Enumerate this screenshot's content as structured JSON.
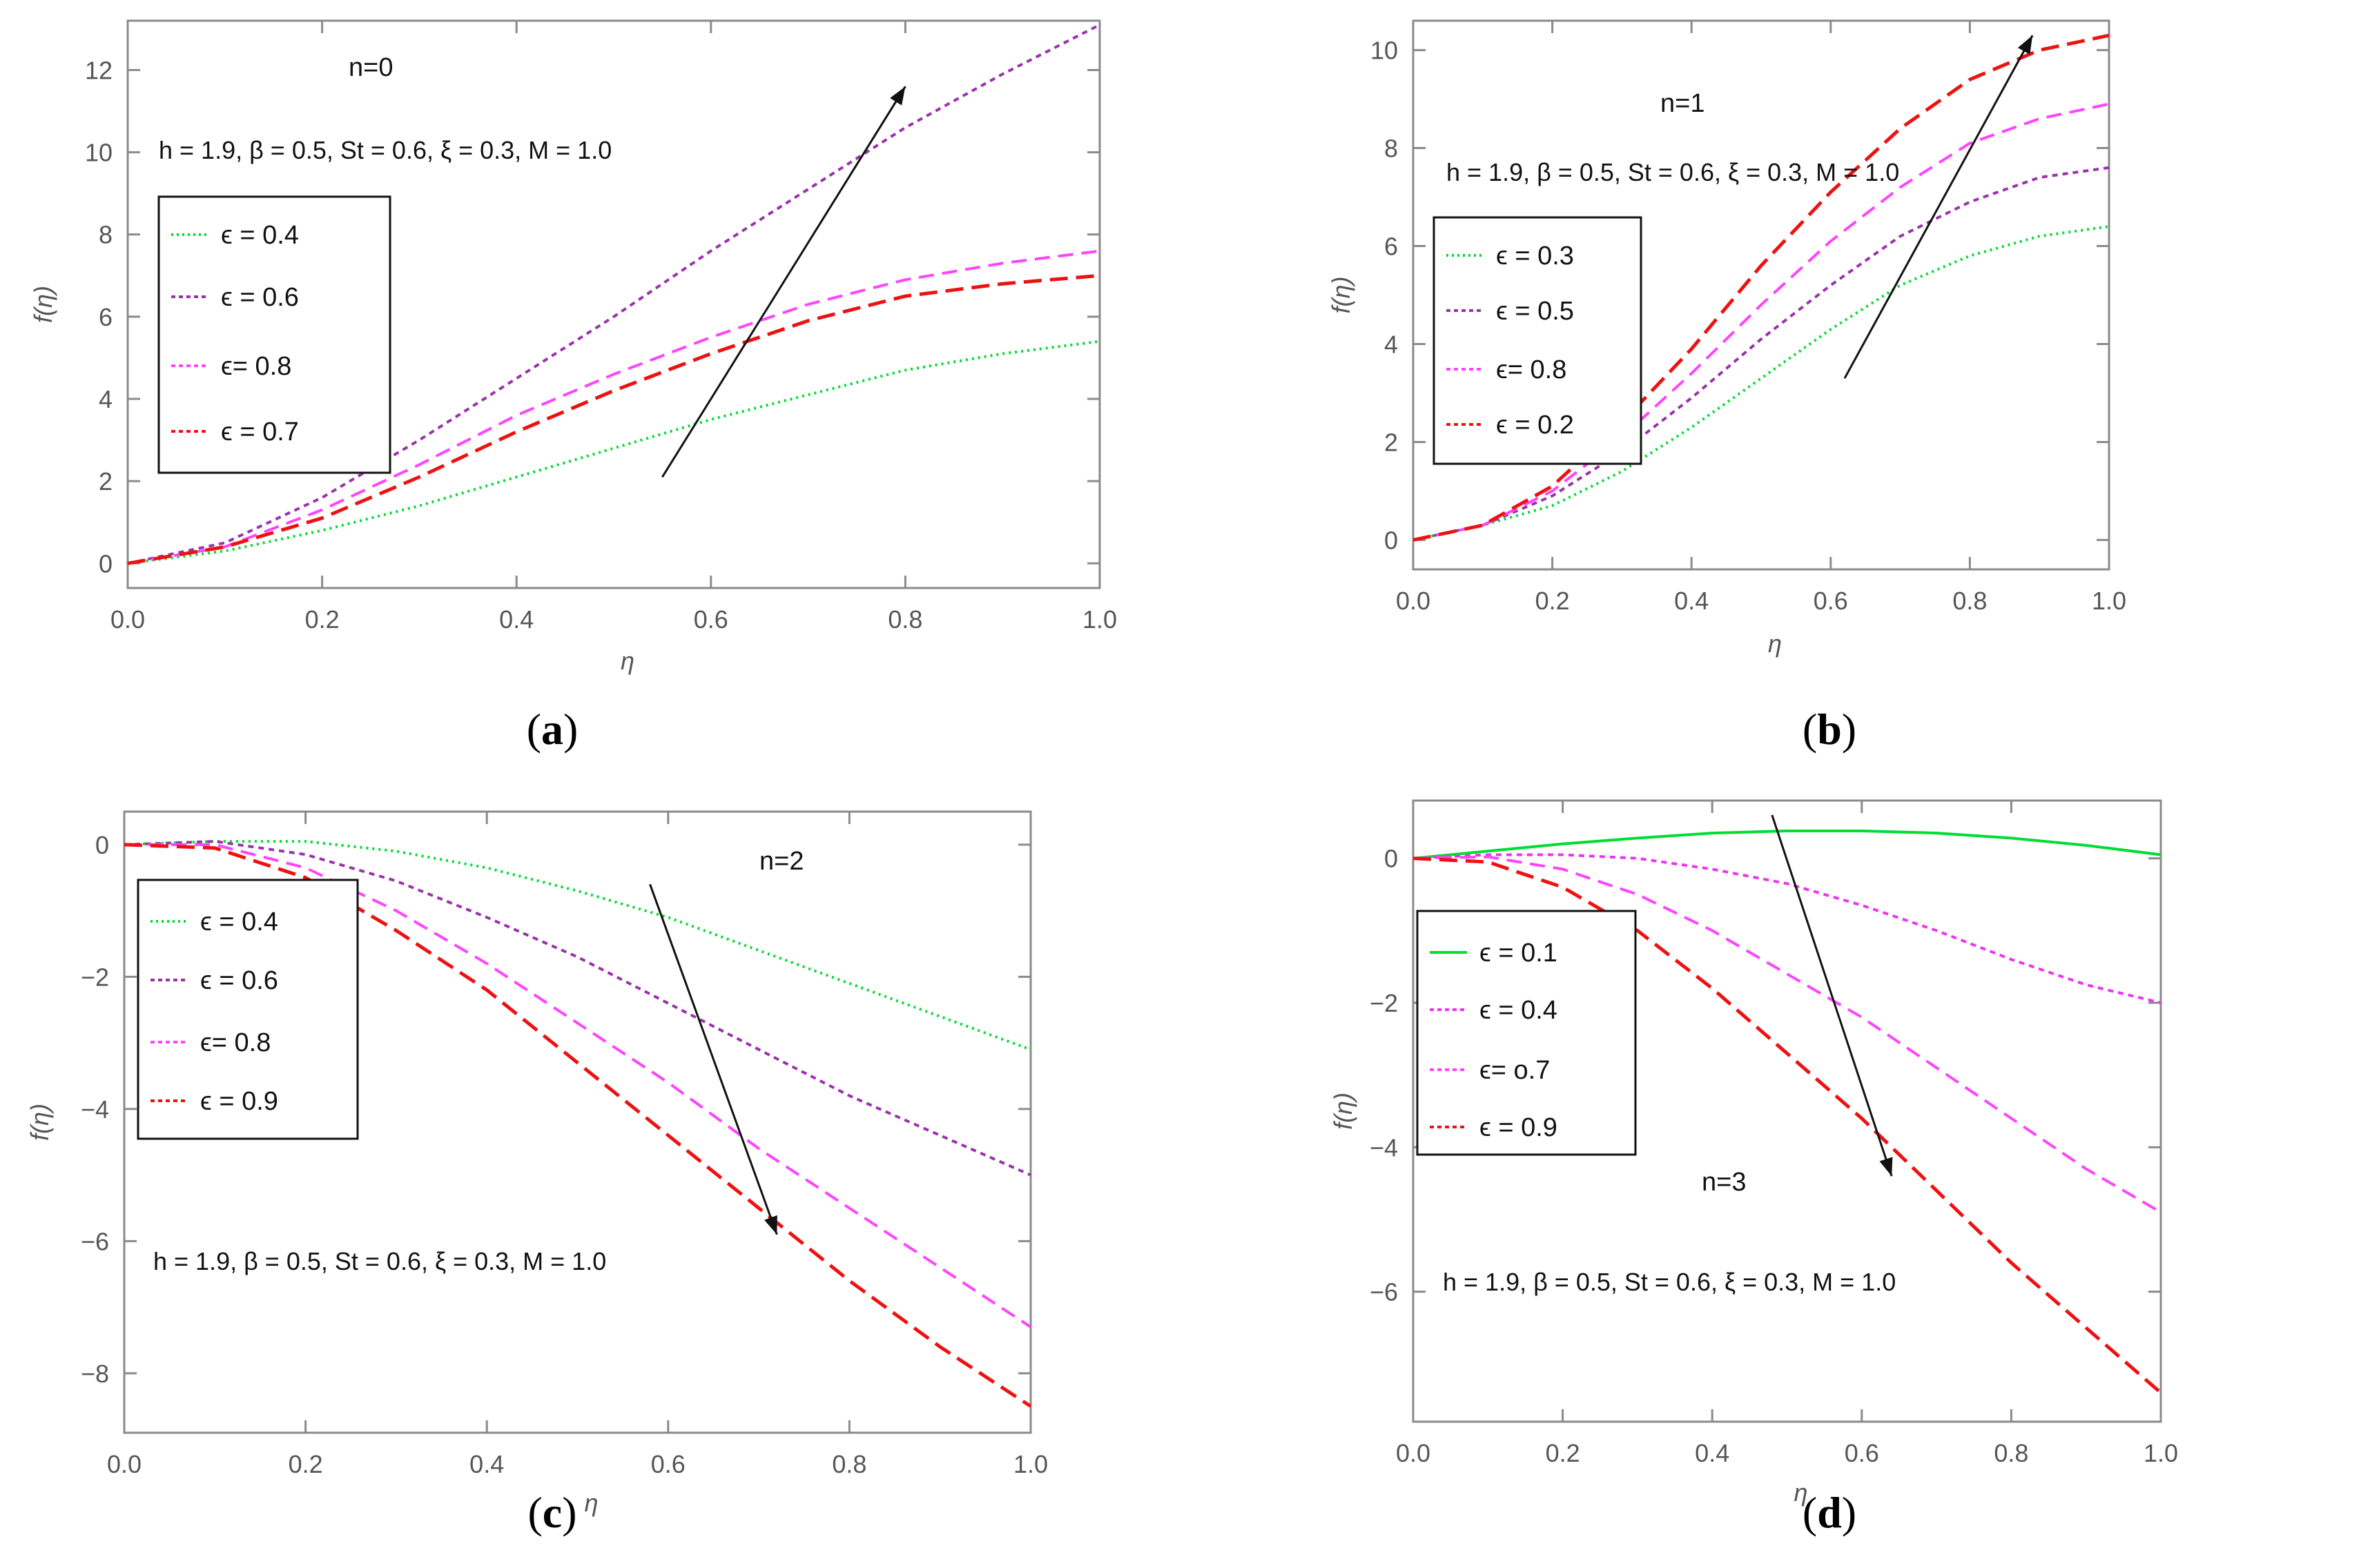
{
  "chart_data": [
    {
      "id": "a",
      "type": "line",
      "caption": "a",
      "annotation": "n=0",
      "params": "h = 1.9, β = 0.5, St = 0.6, ξ = 0.3, M = 1.0",
      "xlabel": "η",
      "ylabel": "f(η)",
      "xlim": [
        0,
        1.0
      ],
      "ylim": [
        -0.6,
        13.2
      ],
      "xticks": [
        "0.0",
        "0.2",
        "0.4",
        "0.6",
        "0.8",
        "1.0"
      ],
      "yticks": [
        "0",
        "2",
        "4",
        "6",
        "8",
        "10",
        "12"
      ],
      "x": [
        0,
        0.1,
        0.2,
        0.3,
        0.4,
        0.5,
        0.6,
        0.7,
        0.8,
        0.9,
        1.0
      ],
      "series": [
        {
          "name": "ϵ = 0.4",
          "color": "#00dd33",
          "dash": "3,6",
          "values": [
            0,
            0.3,
            0.8,
            1.4,
            2.1,
            2.8,
            3.5,
            4.1,
            4.7,
            5.1,
            5.4
          ]
        },
        {
          "name": "ϵ = 0.6",
          "color": "#9933aa",
          "dash": "8,7",
          "values": [
            0,
            0.5,
            1.6,
            3.0,
            4.5,
            6.0,
            7.6,
            9.1,
            10.6,
            11.9,
            13.1
          ]
        },
        {
          "name": "ϵ= 0.8",
          "color": "#ff44ff",
          "dash": "22,12",
          "values": [
            0,
            0.4,
            1.3,
            2.4,
            3.6,
            4.6,
            5.5,
            6.3,
            6.9,
            7.3,
            7.6
          ]
        },
        {
          "name": "ϵ = 0.7",
          "color": "#ee1111",
          "dash": "26,12",
          "values": [
            0,
            0.4,
            1.1,
            2.1,
            3.2,
            4.2,
            5.1,
            5.9,
            6.5,
            6.8,
            7.0
          ]
        }
      ],
      "arrow": {
        "from": [
          0.55,
          2.1
        ],
        "to": [
          0.8,
          11.6
        ]
      }
    },
    {
      "id": "b",
      "type": "line",
      "caption": "b",
      "annotation": "n=1",
      "params": "h = 1.9, β = 0.5, St = 0.6, ξ = 0.3, M = 1.0",
      "xlabel": "η",
      "ylabel": "f(η)",
      "xlim": [
        0,
        1.0
      ],
      "ylim": [
        -0.6,
        10.6
      ],
      "xticks": [
        "0.0",
        "0.2",
        "0.4",
        "0.6",
        "0.8",
        "1.0"
      ],
      "yticks": [
        "0",
        "2",
        "4",
        "6",
        "8",
        "10"
      ],
      "x": [
        0,
        0.1,
        0.2,
        0.3,
        0.4,
        0.5,
        0.6,
        0.7,
        0.8,
        0.9,
        1.0
      ],
      "series": [
        {
          "name": "ϵ = 0.3",
          "color": "#00dd33",
          "dash": "3,6",
          "values": [
            0,
            0.3,
            0.7,
            1.4,
            2.3,
            3.3,
            4.3,
            5.2,
            5.8,
            6.2,
            6.4
          ]
        },
        {
          "name": "ϵ = 0.5",
          "color": "#9933aa",
          "dash": "8,7",
          "values": [
            0,
            0.3,
            0.9,
            1.8,
            2.9,
            4.1,
            5.2,
            6.2,
            6.9,
            7.4,
            7.6
          ]
        },
        {
          "name": "ϵ= 0.8",
          "color": "#ff44ff",
          "dash": "22,12",
          "values": [
            0,
            0.3,
            1.0,
            2.1,
            3.4,
            4.8,
            6.1,
            7.2,
            8.1,
            8.6,
            8.9
          ]
        },
        {
          "name": "ϵ = 0.2",
          "color": "#ee1111",
          "dash": "26,12",
          "values": [
            0,
            0.3,
            1.1,
            2.4,
            3.9,
            5.6,
            7.1,
            8.4,
            9.4,
            10.0,
            10.3
          ]
        }
      ],
      "arrow": {
        "from": [
          0.62,
          3.3
        ],
        "to": [
          0.89,
          10.3
        ]
      }
    },
    {
      "id": "c",
      "type": "line",
      "caption": "c",
      "annotation": "n=2",
      "params": "h = 1.9, β = 0.5, St = 0.6, ξ = 0.3, M = 1.0",
      "xlabel": "η",
      "ylabel": "f(η)",
      "xlim": [
        0,
        1.0
      ],
      "ylim": [
        -8.9,
        0.5
      ],
      "xticks": [
        "0.0",
        "0.2",
        "0.4",
        "0.6",
        "0.8",
        "1.0"
      ],
      "yticks": [
        "0",
        "−2",
        "−4",
        "−6",
        "−8"
      ],
      "x": [
        0,
        0.1,
        0.2,
        0.3,
        0.4,
        0.5,
        0.6,
        0.7,
        0.8,
        0.9,
        1.0
      ],
      "series": [
        {
          "name": "ϵ = 0.4",
          "color": "#00dd33",
          "dash": "3,6",
          "values": [
            0,
            0.05,
            0.05,
            -0.1,
            -0.35,
            -0.7,
            -1.1,
            -1.6,
            -2.1,
            -2.6,
            -3.1
          ]
        },
        {
          "name": "ϵ = 0.6",
          "color": "#9933aa",
          "dash": "8,7",
          "values": [
            0,
            0.05,
            -0.15,
            -0.55,
            -1.1,
            -1.7,
            -2.4,
            -3.1,
            -3.8,
            -4.4,
            -5.0
          ]
        },
        {
          "name": "ϵ= 0.8",
          "color": "#ff44ff",
          "dash": "22,12",
          "values": [
            0,
            0,
            -0.35,
            -1.0,
            -1.8,
            -2.7,
            -3.6,
            -4.6,
            -5.5,
            -6.4,
            -7.3
          ]
        },
        {
          "name": "ϵ = 0.9",
          "color": "#ee1111",
          "dash": "26,12",
          "values": [
            0,
            -0.05,
            -0.5,
            -1.3,
            -2.2,
            -3.3,
            -4.4,
            -5.5,
            -6.6,
            -7.6,
            -8.5
          ]
        }
      ],
      "arrow": {
        "from": [
          0.58,
          -0.6
        ],
        "to": [
          0.72,
          -5.9
        ]
      }
    },
    {
      "id": "d",
      "type": "line",
      "caption": "d",
      "annotation": "n=3",
      "params": "h = 1.9, β = 0.5, St = 0.6, ξ = 0.3, M = 1.0",
      "xlabel": "η",
      "ylabel": "f(η)",
      "xlim": [
        0,
        1.0
      ],
      "ylim": [
        -7.8,
        0.8
      ],
      "xticks": [
        "0.0",
        "0.2",
        "0.4",
        "0.6",
        "0.8",
        "1.0"
      ],
      "yticks": [
        "0",
        "−2",
        "−4",
        "−6"
      ],
      "x": [
        0,
        0.1,
        0.2,
        0.3,
        0.4,
        0.5,
        0.6,
        0.7,
        0.8,
        0.9,
        1.0
      ],
      "series": [
        {
          "name": "ϵ = 0.1",
          "color": "#00dd33",
          "dash": "",
          "values": [
            0,
            0.1,
            0.2,
            0.28,
            0.35,
            0.38,
            0.38,
            0.35,
            0.28,
            0.18,
            0.05
          ]
        },
        {
          "name": "ϵ = 0.4",
          "color": "#ee33ee",
          "dash": "8,7",
          "values": [
            0,
            0.05,
            0.05,
            0,
            -0.15,
            -0.35,
            -0.65,
            -1.0,
            -1.4,
            -1.75,
            -2.0
          ]
        },
        {
          "name": "ϵ= o.7",
          "color": "#ff44ff",
          "dash": "22,12",
          "values": [
            0,
            0.02,
            -0.15,
            -0.5,
            -1.0,
            -1.6,
            -2.2,
            -2.9,
            -3.6,
            -4.3,
            -4.9
          ]
        },
        {
          "name": "ϵ = 0.9",
          "color": "#ee1111",
          "dash": "26,12",
          "values": [
            0,
            -0.05,
            -0.4,
            -1.0,
            -1.8,
            -2.7,
            -3.6,
            -4.6,
            -5.6,
            -6.5,
            -7.4
          ]
        }
      ],
      "arrow": {
        "from": [
          0.48,
          0.6
        ],
        "to": [
          0.64,
          -4.4
        ]
      }
    }
  ]
}
